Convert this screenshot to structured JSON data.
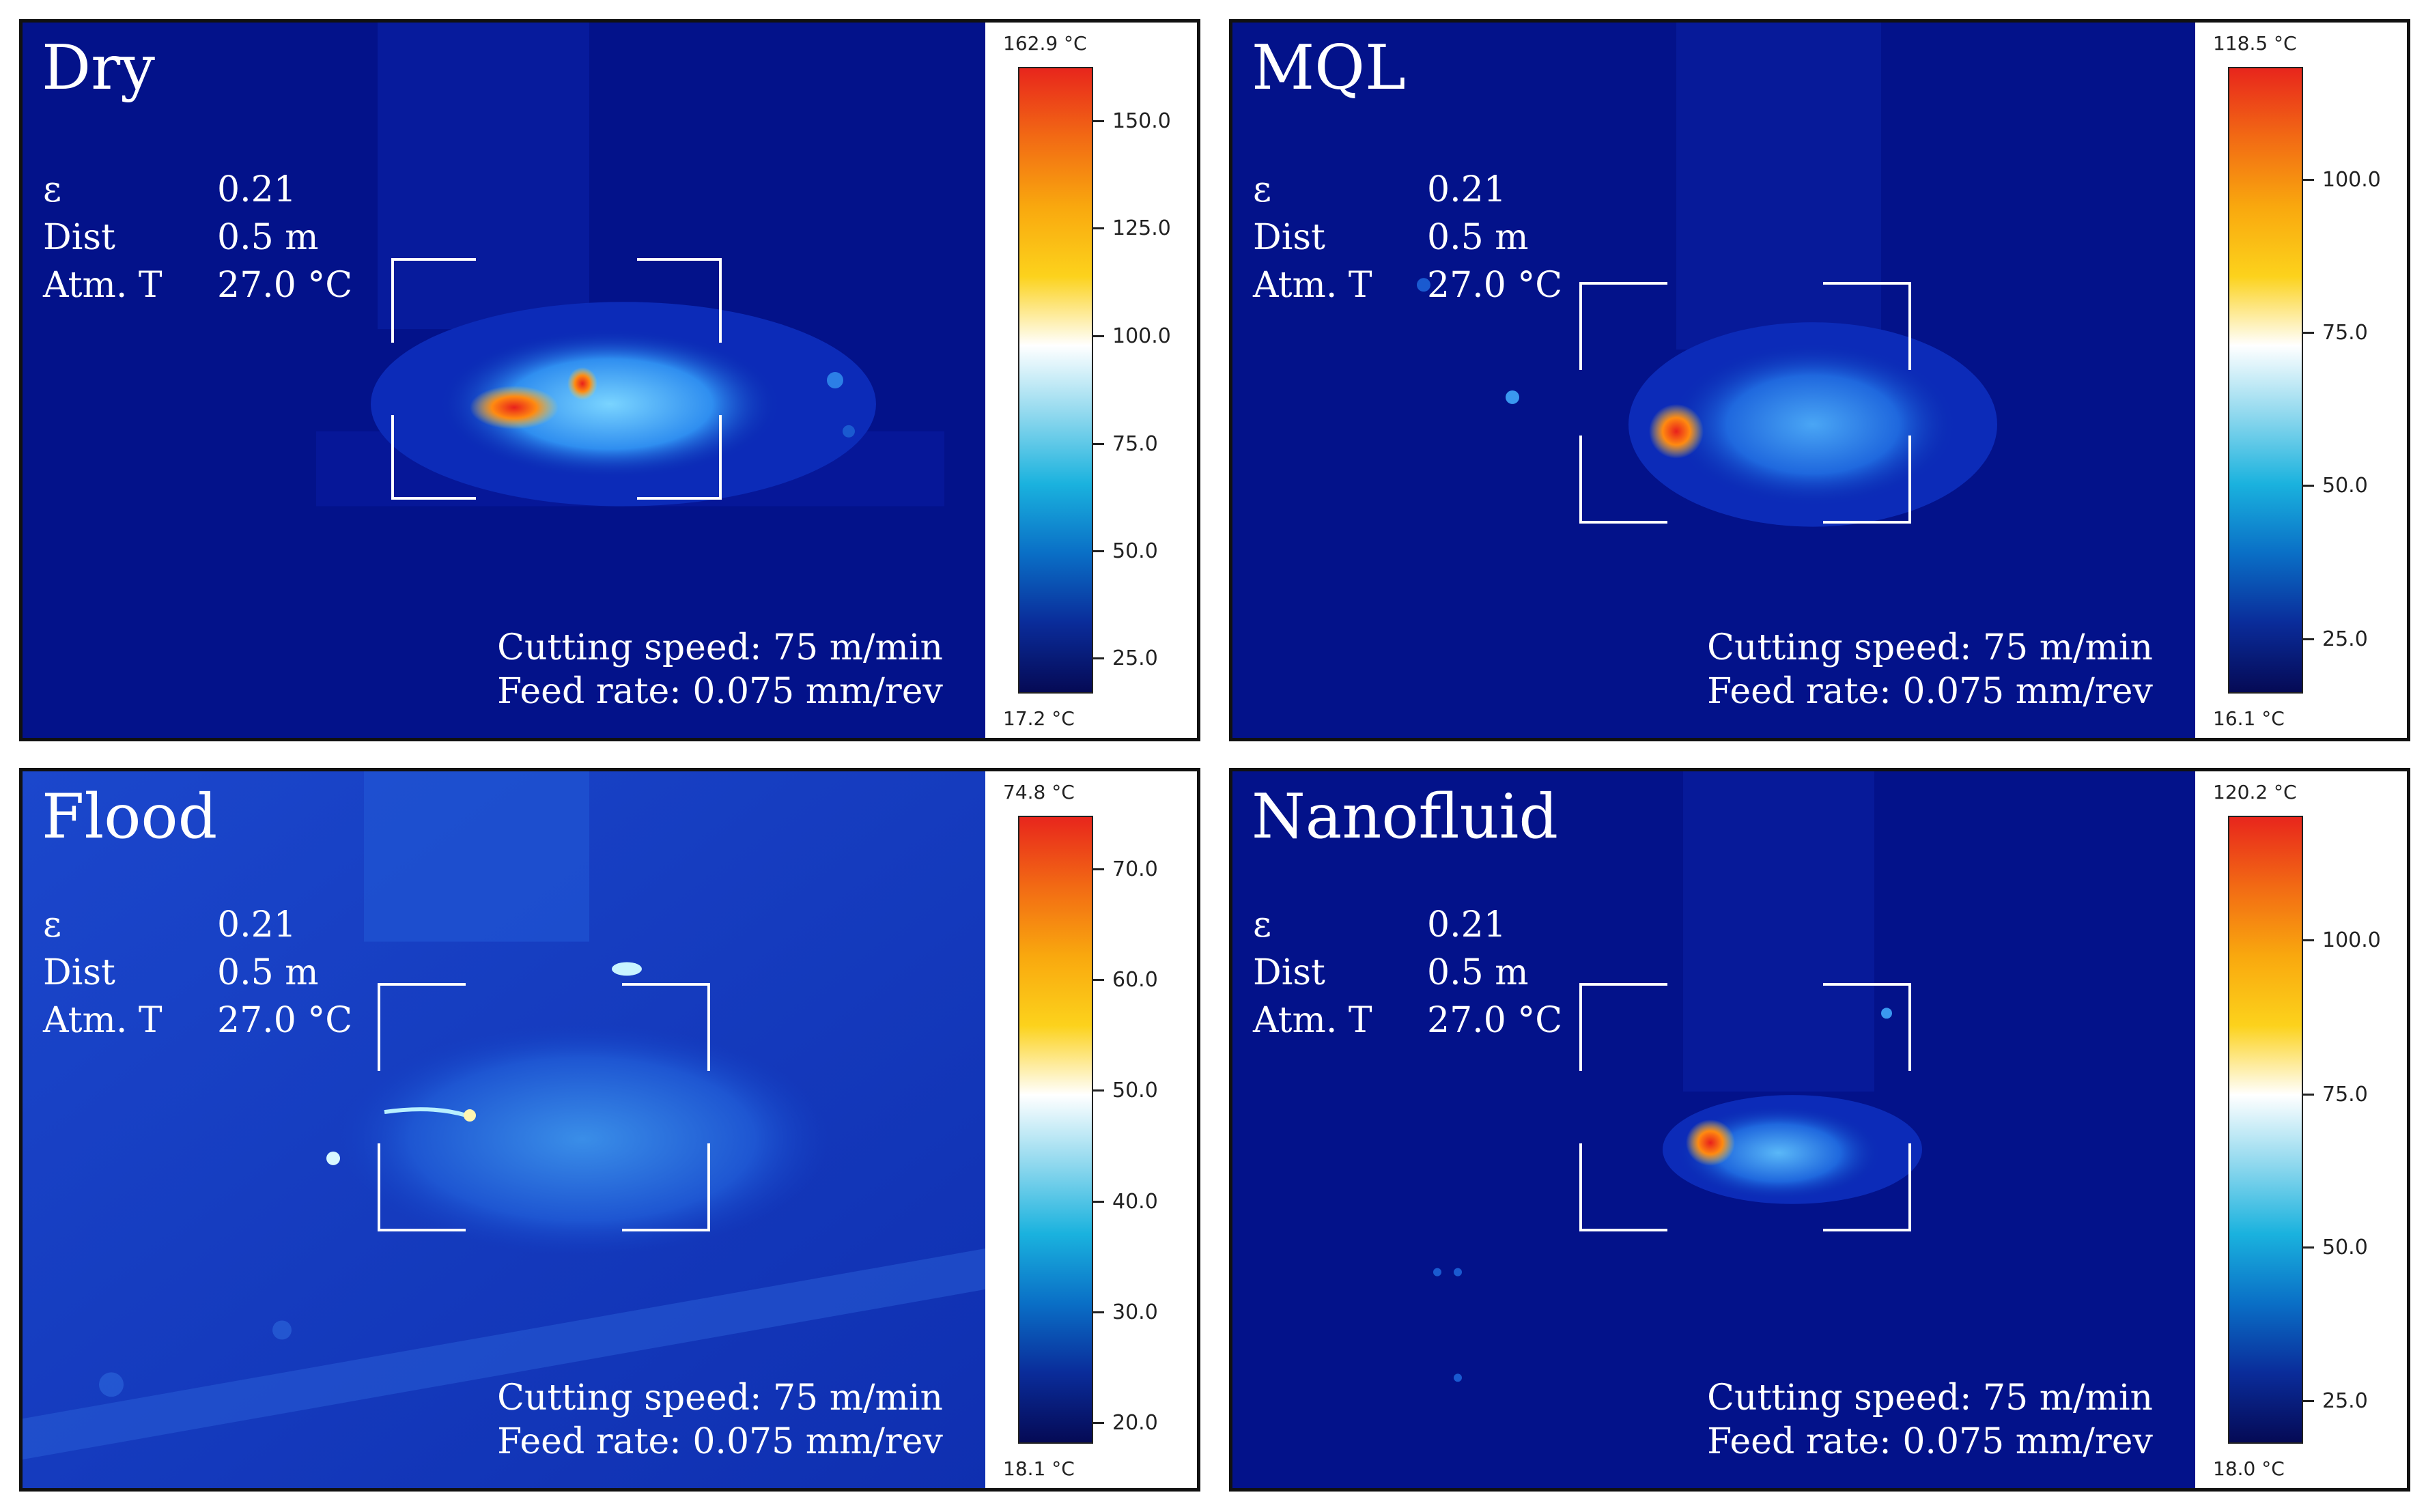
{
  "panels": [
    {
      "title": "Dry",
      "params": [
        {
          "label": "ε",
          "value": "0.21"
        },
        {
          "label": "Dist",
          "value": "0.5 m"
        },
        {
          "label": "Atm. T",
          "value": "27.0 °C"
        }
      ],
      "conditions": [
        "Cutting speed: 75 m/min",
        "Feed rate: 0.075 mm/rev"
      ],
      "scale": {
        "max": "162.9 °C",
        "min": "17.2 °C",
        "ticks": [
          "150.0",
          "125.0",
          "100.0",
          "75.0",
          "50.0",
          "25.0"
        ],
        "tick_fracs": [
          0.086,
          0.257,
          0.429,
          0.601,
          0.772,
          0.943
        ]
      }
    },
    {
      "title": "MQL",
      "params": [
        {
          "label": "ε",
          "value": "0.21"
        },
        {
          "label": "Dist",
          "value": "0.5 m"
        },
        {
          "label": "Atm. T",
          "value": "27.0 °C"
        }
      ],
      "conditions": [
        "Cutting speed: 75 m/min",
        "Feed rate: 0.075 mm/rev"
      ],
      "scale": {
        "max": "118.5 °C",
        "min": "16.1 °C",
        "ticks": [
          "100.0",
          "75.0",
          "50.0",
          "25.0"
        ],
        "tick_fracs": [
          0.18,
          0.424,
          0.668,
          0.913
        ]
      }
    },
    {
      "title": "Flood",
      "params": [
        {
          "label": "ε",
          "value": "0.21"
        },
        {
          "label": "Dist",
          "value": "0.5 m"
        },
        {
          "label": "Atm. T",
          "value": "27.0 °C"
        }
      ],
      "conditions": [
        "Cutting speed: 75 m/min",
        "Feed rate: 0.075 mm/rev"
      ],
      "scale": {
        "max": "74.8 °C",
        "min": "18.1 °C",
        "ticks": [
          "70.0",
          "60.0",
          "50.0",
          "40.0",
          "30.0",
          "20.0"
        ],
        "tick_fracs": [
          0.085,
          0.261,
          0.437,
          0.614,
          0.79,
          0.966
        ]
      }
    },
    {
      "title": "Nanofluid",
      "params": [
        {
          "label": "ε",
          "value": "0.21"
        },
        {
          "label": "Dist",
          "value": "0.5 m"
        },
        {
          "label": "Atm. T",
          "value": "27.0 °C"
        }
      ],
      "conditions": [
        "Cutting speed: 75 m/min",
        "Feed rate: 0.075 mm/rev"
      ],
      "scale": {
        "max": "120.2 °C",
        "min": "18.0 °C",
        "ticks": [
          "100.0",
          "75.0",
          "50.0",
          "25.0"
        ],
        "tick_fracs": [
          0.198,
          0.443,
          0.687,
          0.932
        ]
      }
    }
  ],
  "colors": {
    "background": "#ffffff",
    "thermal_dark": "#03128a",
    "thermal_mid": "#0a3fc8",
    "thermal_light": "#6fd2ff",
    "hot": "#ff6a00",
    "hottest": "#e8201c",
    "scale_gradient": [
      "#e8261c",
      "#f26a14",
      "#f9a80e",
      "#fcd21c",
      "#ffffff",
      "#8fd8ee",
      "#1ab2de",
      "#0a6fc6",
      "#0a2c9a",
      "#050a55"
    ]
  }
}
